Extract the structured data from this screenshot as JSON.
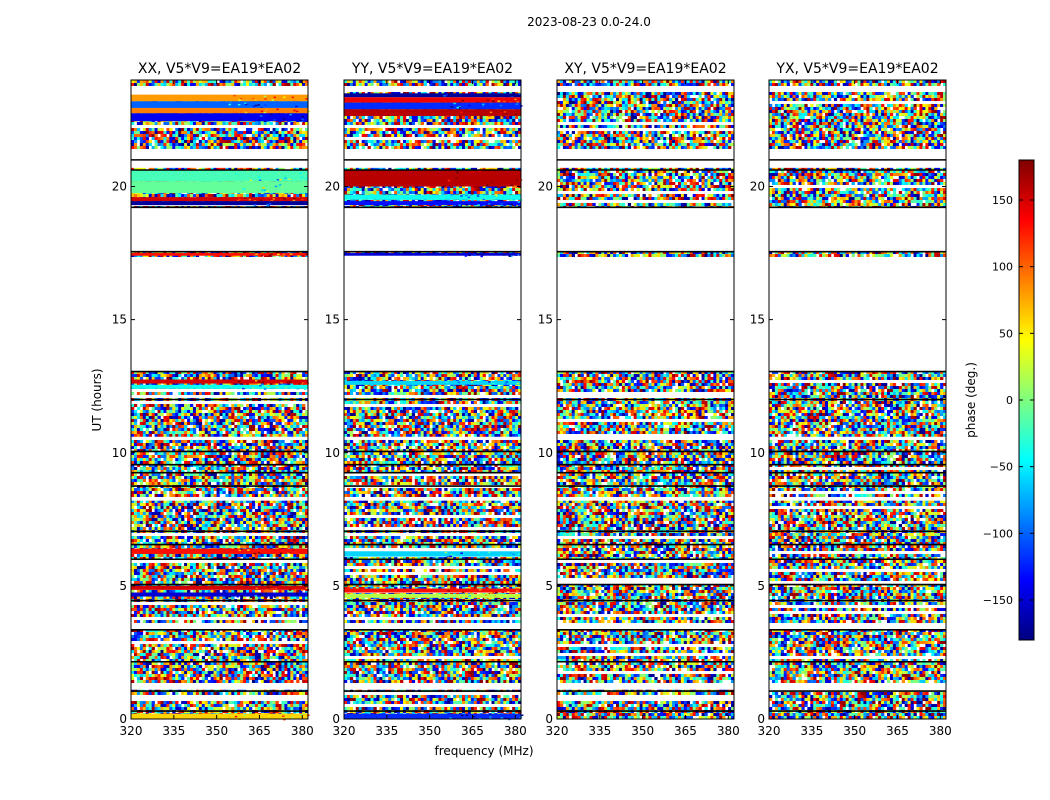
{
  "figure": {
    "suptitle": "2023-08-23 0.0-24.0"
  },
  "chart_data": {
    "type": "heatmap",
    "shared_x_label": "frequency (MHz)",
    "shared_y_label": "UT (hours)",
    "xlim": [
      320,
      382
    ],
    "ylim": [
      0,
      24
    ],
    "x_ticks": [
      320,
      335,
      350,
      365,
      380
    ],
    "y_ticks": [
      0,
      5,
      10,
      15,
      20
    ],
    "panels": [
      {
        "title": "XX, V5*V9=EA19*EA02",
        "coherent_bands": [
          {
            "t0": 23.2,
            "t1": 23.45,
            "phase": 80
          },
          {
            "t0": 22.95,
            "t1": 23.2,
            "phase": -100
          },
          {
            "t0": 22.75,
            "t1": 22.95,
            "phase": 90
          },
          {
            "t0": 22.45,
            "t1": 22.75,
            "phase": -140
          },
          {
            "t0": 20.2,
            "t1": 20.6,
            "phase": -20
          },
          {
            "t0": 19.75,
            "t1": 20.2,
            "phase": -10
          },
          {
            "t0": 19.45,
            "t1": 19.6,
            "phase": 150
          },
          {
            "t0": 19.3,
            "t1": 19.45,
            "phase": -170
          },
          {
            "t0": 17.4,
            "t1": 17.5,
            "phase": 130
          },
          {
            "t0": 12.6,
            "t1": 12.75,
            "phase": 150
          },
          {
            "t0": 12.4,
            "t1": 12.55,
            "phase": -40
          },
          {
            "t0": 6.2,
            "t1": 6.4,
            "phase": 130
          },
          {
            "t0": 4.85,
            "t1": 5.0,
            "phase": 150
          },
          {
            "t0": 4.6,
            "t1": 4.75,
            "phase": -150
          },
          {
            "t0": 0.0,
            "t1": 0.2,
            "phase": 60
          }
        ]
      },
      {
        "title": "YY, V5*V9=EA19*EA02",
        "coherent_bands": [
          {
            "t0": 23.35,
            "t1": 23.5,
            "phase": -170
          },
          {
            "t0": 23.15,
            "t1": 23.35,
            "phase": 140
          },
          {
            "t0": 22.9,
            "t1": 23.15,
            "phase": -120
          },
          {
            "t0": 22.65,
            "t1": 22.9,
            "phase": 160
          },
          {
            "t0": 20.0,
            "t1": 20.6,
            "phase": 160
          },
          {
            "t0": 19.5,
            "t1": 19.7,
            "phase": -40
          },
          {
            "t0": 19.3,
            "t1": 19.45,
            "phase": -130
          },
          {
            "t0": 17.4,
            "t1": 17.5,
            "phase": -150
          },
          {
            "t0": 12.55,
            "t1": 12.7,
            "phase": -60
          },
          {
            "t0": 6.1,
            "t1": 6.3,
            "phase": -60
          },
          {
            "t0": 4.75,
            "t1": 4.9,
            "phase": 130
          },
          {
            "t0": 4.55,
            "t1": 4.7,
            "phase": 20
          },
          {
            "t0": 0.0,
            "t1": 0.2,
            "phase": -120
          }
        ]
      },
      {
        "title": "XY, V5*V9=EA19*EA02",
        "coherent_bands": []
      },
      {
        "title": "YX, V5*V9=EA19*EA02",
        "coherent_bands": []
      }
    ],
    "empty_intervals": [
      [
        13.1,
        17.3
      ],
      [
        17.6,
        19.2
      ],
      [
        20.7,
        21.4
      ],
      [
        23.55,
        23.75
      ],
      [
        1.1,
        1.3
      ],
      [
        3.4,
        3.6
      ],
      [
        8.2,
        8.3
      ],
      [
        10.5,
        10.6
      ]
    ],
    "flag_lines": [
      21.0,
      20.62,
      19.22,
      17.55,
      13.05,
      12.0,
      10.05,
      9.55,
      9.25,
      8.75,
      7.05,
      6.55,
      6.0,
      5.05,
      4.45,
      3.35,
      2.15,
      1.05,
      0.3
    ],
    "colorbar": {
      "label": "phase (deg.)",
      "range": [
        -180,
        180
      ],
      "ticks": [
        150,
        100,
        50,
        0,
        -50,
        -100,
        -150
      ],
      "tick_labels": [
        "150",
        "100",
        "50",
        "0",
        "−50",
        "−100",
        "−150"
      ],
      "colormap": [
        "#00007f",
        "#0000ff",
        "#007fff",
        "#00ffff",
        "#7fff7f",
        "#ffff00",
        "#ff7f00",
        "#ff0000",
        "#7f0000"
      ]
    }
  }
}
